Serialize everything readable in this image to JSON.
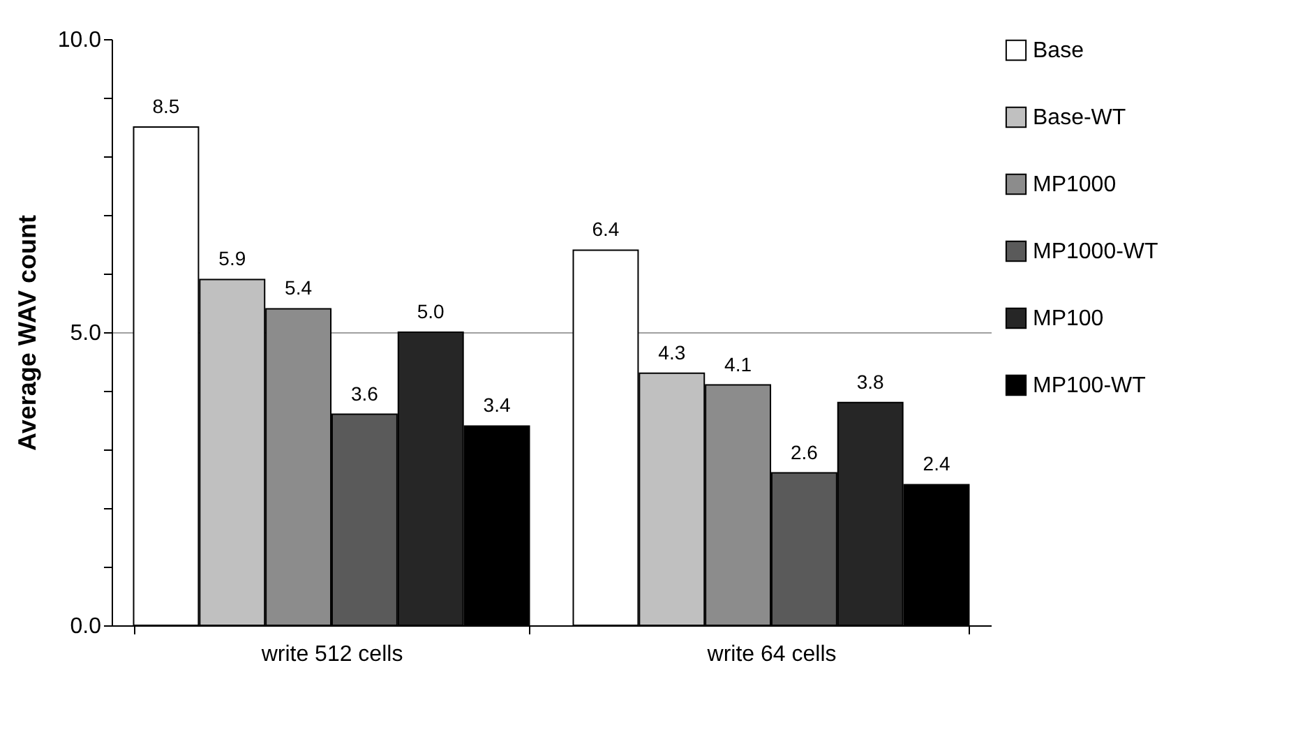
{
  "chart_data": {
    "type": "bar",
    "ylabel": "Average WAV count",
    "categories": [
      "write 512 cells",
      "write 64 cells"
    ],
    "series": [
      {
        "name": "Base",
        "color": "#ffffff",
        "values": [
          8.5,
          6.4
        ],
        "value_labels": [
          "8.5",
          "6.4"
        ]
      },
      {
        "name": "Base-WT",
        "color": "#c0c0c0",
        "values": [
          5.9,
          4.3
        ],
        "value_labels": [
          "5.9",
          "4.3"
        ]
      },
      {
        "name": "MP1000",
        "color": "#8c8c8c",
        "values": [
          5.4,
          4.1
        ],
        "value_labels": [
          "5.4",
          "4.1"
        ]
      },
      {
        "name": "MP1000-WT",
        "color": "#5a5a5a",
        "values": [
          3.6,
          2.6
        ],
        "value_labels": [
          "3.6",
          "2.6"
        ]
      },
      {
        "name": "MP100",
        "color": "#262626",
        "values": [
          5.0,
          3.8
        ],
        "value_labels": [
          "5.0",
          "3.8"
        ]
      },
      {
        "name": "MP100-WT",
        "color": "#000000",
        "values": [
          3.4,
          2.4
        ],
        "value_labels": [
          "3.4",
          "2.4"
        ]
      }
    ],
    "ylim": [
      0,
      10
    ],
    "yticks": [
      {
        "value": 0,
        "label": "0.0"
      },
      {
        "value": 1,
        "label": null
      },
      {
        "value": 2,
        "label": null
      },
      {
        "value": 3,
        "label": null
      },
      {
        "value": 4,
        "label": null
      },
      {
        "value": 5,
        "label": "5.0"
      },
      {
        "value": 6,
        "label": null
      },
      {
        "value": 7,
        "label": null
      },
      {
        "value": 8,
        "label": null
      },
      {
        "value": 9,
        "label": null
      },
      {
        "value": 10,
        "label": "10.0"
      }
    ],
    "grid": "y",
    "legend": "right"
  }
}
